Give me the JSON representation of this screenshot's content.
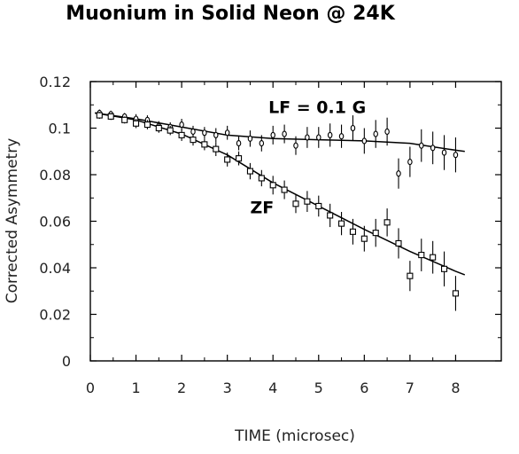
{
  "chart_data": {
    "type": "scatter",
    "title": "Muonium in Solid Neon @ 24K",
    "xlabel": "TIME (microsec)",
    "ylabel": "Corrected Asymmetry",
    "xlim": [
      0,
      9
    ],
    "ylim": [
      0,
      0.12
    ],
    "x_ticks": [
      "0",
      "1",
      "2",
      "3",
      "4",
      "5",
      "6",
      "7",
      "8"
    ],
    "y_ticks": [
      "0",
      "0.02",
      "0.04",
      "0.06",
      "0.08",
      "0.1",
      "0.12"
    ],
    "annotations": [
      {
        "text": "LF = 0.1 G",
        "x": 3.9,
        "y": 0.1065
      },
      {
        "text": "ZF",
        "x": 3.5,
        "y": 0.0635
      }
    ],
    "series": [
      {
        "marker": "circle",
        "points": [
          {
            "x": 0.2,
            "y": 0.1065,
            "err": 0.0015
          },
          {
            "x": 0.45,
            "y": 0.106,
            "err": 0.0015
          },
          {
            "x": 0.75,
            "y": 0.105,
            "err": 0.0015
          },
          {
            "x": 1.0,
            "y": 0.104,
            "err": 0.002
          },
          {
            "x": 1.25,
            "y": 0.1035,
            "err": 0.002
          },
          {
            "x": 1.5,
            "y": 0.101,
            "err": 0.002
          },
          {
            "x": 1.75,
            "y": 0.1005,
            "err": 0.002
          },
          {
            "x": 2.0,
            "y": 0.1015,
            "err": 0.0025
          },
          {
            "x": 2.25,
            "y": 0.0985,
            "err": 0.0025
          },
          {
            "x": 2.5,
            "y": 0.098,
            "err": 0.0025
          },
          {
            "x": 2.75,
            "y": 0.097,
            "err": 0.003
          },
          {
            "x": 3.0,
            "y": 0.098,
            "err": 0.003
          },
          {
            "x": 3.25,
            "y": 0.0935,
            "err": 0.003
          },
          {
            "x": 3.5,
            "y": 0.0955,
            "err": 0.0035
          },
          {
            "x": 3.75,
            "y": 0.0935,
            "err": 0.0035
          },
          {
            "x": 4.0,
            "y": 0.097,
            "err": 0.004
          },
          {
            "x": 4.25,
            "y": 0.0975,
            "err": 0.004
          },
          {
            "x": 4.5,
            "y": 0.0925,
            "err": 0.004
          },
          {
            "x": 4.75,
            "y": 0.096,
            "err": 0.0045
          },
          {
            "x": 5.0,
            "y": 0.096,
            "err": 0.0045
          },
          {
            "x": 5.25,
            "y": 0.097,
            "err": 0.005
          },
          {
            "x": 5.5,
            "y": 0.0965,
            "err": 0.005
          },
          {
            "x": 5.75,
            "y": 0.1,
            "err": 0.0055
          },
          {
            "x": 6.0,
            "y": 0.0945,
            "err": 0.0055
          },
          {
            "x": 6.25,
            "y": 0.0975,
            "err": 0.006
          },
          {
            "x": 6.5,
            "y": 0.0985,
            "err": 0.006
          },
          {
            "x": 6.75,
            "y": 0.0805,
            "err": 0.0065
          },
          {
            "x": 7.0,
            "y": 0.0855,
            "err": 0.0065
          },
          {
            "x": 7.25,
            "y": 0.0925,
            "err": 0.007
          },
          {
            "x": 7.5,
            "y": 0.0915,
            "err": 0.007
          },
          {
            "x": 7.75,
            "y": 0.0895,
            "err": 0.0075
          },
          {
            "x": 8.0,
            "y": 0.0885,
            "err": 0.0075
          }
        ]
      },
      {
        "marker": "square",
        "points": [
          {
            "x": 0.2,
            "y": 0.1055,
            "err": 0.0015
          },
          {
            "x": 0.45,
            "y": 0.105,
            "err": 0.0015
          },
          {
            "x": 0.75,
            "y": 0.1035,
            "err": 0.0015
          },
          {
            "x": 1.0,
            "y": 0.102,
            "err": 0.002
          },
          {
            "x": 1.25,
            "y": 0.1015,
            "err": 0.002
          },
          {
            "x": 1.5,
            "y": 0.1,
            "err": 0.002
          },
          {
            "x": 1.75,
            "y": 0.099,
            "err": 0.002
          },
          {
            "x": 2.0,
            "y": 0.097,
            "err": 0.0025
          },
          {
            "x": 2.25,
            "y": 0.095,
            "err": 0.0025
          },
          {
            "x": 2.5,
            "y": 0.093,
            "err": 0.0025
          },
          {
            "x": 2.75,
            "y": 0.091,
            "err": 0.003
          },
          {
            "x": 3.0,
            "y": 0.0865,
            "err": 0.003
          },
          {
            "x": 3.25,
            "y": 0.087,
            "err": 0.003
          },
          {
            "x": 3.5,
            "y": 0.0815,
            "err": 0.0035
          },
          {
            "x": 3.75,
            "y": 0.0785,
            "err": 0.0035
          },
          {
            "x": 4.0,
            "y": 0.0755,
            "err": 0.004
          },
          {
            "x": 4.25,
            "y": 0.0735,
            "err": 0.004
          },
          {
            "x": 4.5,
            "y": 0.0675,
            "err": 0.004
          },
          {
            "x": 4.75,
            "y": 0.0685,
            "err": 0.0045
          },
          {
            "x": 5.0,
            "y": 0.0665,
            "err": 0.0045
          },
          {
            "x": 5.25,
            "y": 0.0625,
            "err": 0.005
          },
          {
            "x": 5.5,
            "y": 0.059,
            "err": 0.005
          },
          {
            "x": 5.75,
            "y": 0.0555,
            "err": 0.0055
          },
          {
            "x": 6.0,
            "y": 0.0525,
            "err": 0.0055
          },
          {
            "x": 6.25,
            "y": 0.055,
            "err": 0.006
          },
          {
            "x": 6.5,
            "y": 0.0595,
            "err": 0.006
          },
          {
            "x": 6.75,
            "y": 0.0505,
            "err": 0.0065
          },
          {
            "x": 7.0,
            "y": 0.0365,
            "err": 0.0065
          },
          {
            "x": 7.25,
            "y": 0.0455,
            "err": 0.007
          },
          {
            "x": 7.5,
            "y": 0.0445,
            "err": 0.007
          },
          {
            "x": 7.75,
            "y": 0.0395,
            "err": 0.0075
          },
          {
            "x": 8.0,
            "y": 0.029,
            "err": 0.0075
          }
        ]
      }
    ],
    "fit_lines": [
      {
        "points": [
          {
            "x": 0.1,
            "y": 0.1065
          },
          {
            "x": 1.0,
            "y": 0.104
          },
          {
            "x": 2.0,
            "y": 0.1005
          },
          {
            "x": 3.0,
            "y": 0.097
          },
          {
            "x": 4.0,
            "y": 0.0955
          },
          {
            "x": 5.0,
            "y": 0.095
          },
          {
            "x": 6.0,
            "y": 0.0945
          },
          {
            "x": 7.0,
            "y": 0.0935
          },
          {
            "x": 8.0,
            "y": 0.0905
          },
          {
            "x": 8.2,
            "y": 0.09
          }
        ]
      },
      {
        "points": [
          {
            "x": 0.1,
            "y": 0.1065
          },
          {
            "x": 1.0,
            "y": 0.1035
          },
          {
            "x": 2.0,
            "y": 0.0975
          },
          {
            "x": 3.0,
            "y": 0.0885
          },
          {
            "x": 4.0,
            "y": 0.0765
          },
          {
            "x": 5.0,
            "y": 0.0665
          },
          {
            "x": 6.0,
            "y": 0.0565
          },
          {
            "x": 7.0,
            "y": 0.047
          },
          {
            "x": 8.0,
            "y": 0.0385
          },
          {
            "x": 8.2,
            "y": 0.037
          }
        ]
      }
    ]
  }
}
